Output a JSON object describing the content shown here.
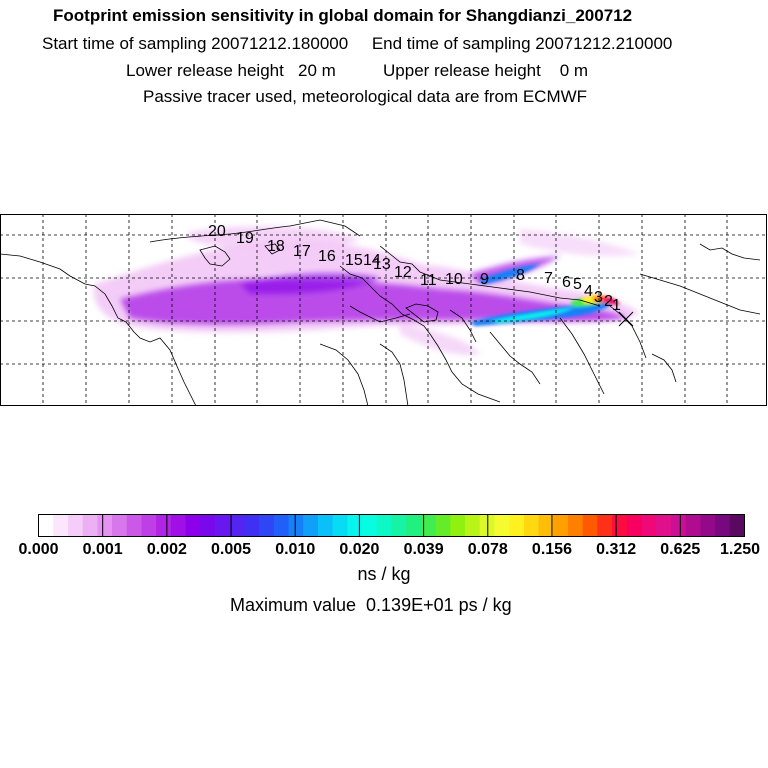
{
  "header": {
    "title": "Footprint emission sensitivity in global domain for Shangdianzi_200712",
    "sampling_line": "Start time of sampling 20071212.180000     End time of sampling 20071212.210000",
    "height_line": "Lower release height   20 m          Upper release height    0 m",
    "tracer_line": "Passive tracer used, meteorological data are from ECMWF"
  },
  "map": {
    "station": "Shangdianzi",
    "backtrajectory_labels": [
      "20",
      "19",
      "18",
      "17",
      "16",
      "15",
      "14",
      "13",
      "12",
      "11",
      "10",
      "9",
      "8",
      "7",
      "6",
      "5",
      "4",
      "3",
      "2",
      "1"
    ]
  },
  "colorbar": {
    "tick_labels": [
      "0.000",
      "0.001",
      "0.002",
      "0.005",
      "0.010",
      "0.020",
      "0.039",
      "0.078",
      "0.156",
      "0.312",
      "0.625",
      "1.250"
    ],
    "colors": [
      "#ffffff",
      "#fce6fc",
      "#f6ccf8",
      "#eeb0f4",
      "#e494f0",
      "#d876ec",
      "#cc58e8",
      "#c03ee6",
      "#b024e6",
      "#a010e6",
      "#8c00ea",
      "#7a08ec",
      "#6818ee",
      "#5424f0",
      "#4030f4",
      "#2e46f6",
      "#2060f8",
      "#1680f8",
      "#10a0f8",
      "#0ac0f8",
      "#08dcf4",
      "#08f4ee",
      "#08fce0",
      "#0cf8c4",
      "#14f4a4",
      "#20f080",
      "#40ec50",
      "#64ec28",
      "#90f010",
      "#b8f418",
      "#dcf828",
      "#f4fc30",
      "#fff020",
      "#ffd810",
      "#ffbc08",
      "#ffa000",
      "#ff8000",
      "#ff5a00",
      "#ff3018",
      "#fc0c40",
      "#f80060",
      "#f00878",
      "#e0108c",
      "#cc1094",
      "#b00c90",
      "#94088a",
      "#780880",
      "#5a0860"
    ],
    "units": "ns / kg",
    "max_value_text": "Maximum value  0.139E+01 ps / kg"
  }
}
